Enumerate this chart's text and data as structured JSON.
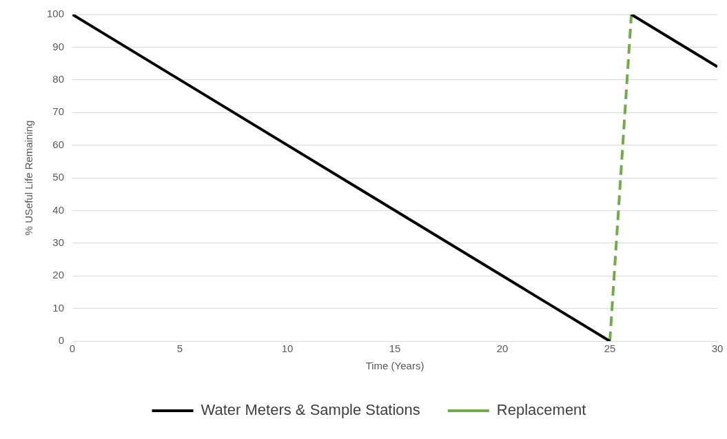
{
  "chart_data": {
    "type": "line",
    "xlabel": "Time (Years)",
    "ylabel": "% USeful Life Remaining",
    "xlim": [
      0,
      30
    ],
    "xticks": [
      0,
      5,
      10,
      15,
      20,
      25,
      30
    ],
    "ylim": [
      0,
      100
    ],
    "yticks": [
      0,
      10,
      20,
      30,
      40,
      50,
      60,
      70,
      80,
      90,
      100
    ],
    "grid": "y",
    "legend": "bottom",
    "marker": "none",
    "series": [
      {
        "name": "Water Meters & Sample Stations",
        "color": "#000000",
        "x": [
          0,
          25,
          25.5,
          26,
          30
        ],
        "values": [
          100,
          0,
          null,
          100,
          84
        ],
        "line_style": "solid"
      },
      {
        "name": "Replacement",
        "color": "#70ad47",
        "x": [
          25,
          26
        ],
        "values": [
          0,
          100
        ],
        "line_style": "dashed"
      }
    ]
  }
}
